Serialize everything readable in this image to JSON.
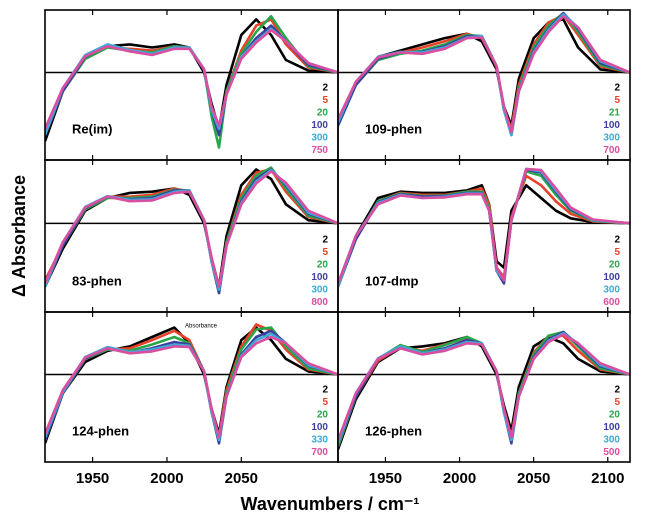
{
  "y_label": "Δ Absorbance",
  "x_label": "Wavenumbers / cm⁻¹",
  "chart_data": [
    {
      "type": "line",
      "title": "Re(im)",
      "xlim": [
        1918,
        2115
      ],
      "ylim": [
        -1.4,
        1
      ],
      "xticks": [
        1950,
        2000,
        2050
      ],
      "x": [
        1918,
        1930,
        1945,
        1960,
        1975,
        1990,
        2005,
        2015,
        2025,
        2030,
        2035,
        2040,
        2050,
        2060,
        2070,
        2080,
        2095,
        2115
      ],
      "series": [
        {
          "name": "2",
          "color": "#000000",
          "values": [
            -1.1,
            -0.3,
            0.25,
            0.42,
            0.45,
            0.4,
            0.45,
            0.4,
            0.0,
            -0.5,
            -0.9,
            -0.2,
            0.6,
            0.85,
            0.6,
            0.2,
            0.03,
            0
          ]
        },
        {
          "name": "5",
          "color": "#e8412a",
          "values": [
            -1.0,
            -0.3,
            0.22,
            0.4,
            0.38,
            0.35,
            0.42,
            0.4,
            0.05,
            -0.6,
            -1.0,
            -0.3,
            0.35,
            0.75,
            0.85,
            0.45,
            0.08,
            0
          ]
        },
        {
          "name": "20",
          "color": "#2aa64a",
          "values": [
            -1.0,
            -0.3,
            0.22,
            0.4,
            0.35,
            0.32,
            0.42,
            0.4,
            0.05,
            -0.7,
            -1.2,
            -0.3,
            0.3,
            0.65,
            0.9,
            0.55,
            0.1,
            0
          ]
        },
        {
          "name": "100",
          "color": "#3b3fa0",
          "values": [
            -1.0,
            -0.3,
            0.25,
            0.43,
            0.34,
            0.3,
            0.4,
            0.4,
            0.05,
            -0.6,
            -1.0,
            -0.35,
            0.25,
            0.55,
            0.75,
            0.5,
            0.12,
            0
          ]
        },
        {
          "name": "300",
          "color": "#3fa9d8",
          "values": [
            -1.0,
            -0.25,
            0.28,
            0.45,
            0.36,
            0.3,
            0.4,
            0.4,
            0.05,
            -0.6,
            -0.9,
            -0.35,
            0.25,
            0.5,
            0.7,
            0.5,
            0.15,
            0
          ]
        },
        {
          "name": "750",
          "color": "#d94ea0",
          "values": [
            -0.9,
            -0.25,
            0.26,
            0.42,
            0.34,
            0.28,
            0.38,
            0.38,
            0.05,
            -0.55,
            -0.85,
            -0.35,
            0.22,
            0.48,
            0.68,
            0.5,
            0.15,
            0
          ]
        }
      ]
    },
    {
      "type": "line",
      "title": "109-phen",
      "xlim": [
        1918,
        2115
      ],
      "ylim": [
        -1.4,
        1
      ],
      "xticks": [
        1950,
        2000,
        2050,
        2100
      ],
      "x": [
        1918,
        1930,
        1945,
        1960,
        1975,
        1990,
        2005,
        2015,
        2025,
        2030,
        2035,
        2040,
        2050,
        2060,
        2070,
        2080,
        2095,
        2115
      ],
      "series": [
        {
          "name": "2",
          "color": "#000000",
          "values": [
            -0.75,
            -0.2,
            0.25,
            0.35,
            0.45,
            0.55,
            0.62,
            0.5,
            0.05,
            -0.55,
            -0.85,
            -0.1,
            0.55,
            0.8,
            0.85,
            0.4,
            0.05,
            0
          ]
        },
        {
          "name": "5",
          "color": "#e8412a",
          "values": [
            -0.8,
            -0.2,
            0.22,
            0.32,
            0.4,
            0.5,
            0.62,
            0.55,
            0.1,
            -0.6,
            -0.9,
            -0.2,
            0.45,
            0.8,
            0.92,
            0.6,
            0.1,
            0
          ]
        },
        {
          "name": "21",
          "color": "#2aa64a",
          "values": [
            -0.85,
            -0.2,
            0.2,
            0.3,
            0.35,
            0.45,
            0.6,
            0.58,
            0.1,
            -0.6,
            -0.95,
            -0.25,
            0.4,
            0.75,
            0.95,
            0.65,
            0.12,
            0
          ]
        },
        {
          "name": "100",
          "color": "#3b3fa0",
          "values": [
            -0.85,
            -0.2,
            0.22,
            0.32,
            0.33,
            0.42,
            0.58,
            0.58,
            0.1,
            -0.6,
            -1.0,
            -0.3,
            0.35,
            0.7,
            0.95,
            0.7,
            0.15,
            0
          ]
        },
        {
          "name": "300",
          "color": "#3fa9d8",
          "values": [
            -0.8,
            -0.15,
            0.25,
            0.33,
            0.32,
            0.4,
            0.56,
            0.58,
            0.1,
            -0.6,
            -1.0,
            -0.3,
            0.32,
            0.68,
            0.93,
            0.72,
            0.18,
            0
          ]
        },
        {
          "name": "700",
          "color": "#d94ea0",
          "values": [
            -0.75,
            -0.15,
            0.24,
            0.32,
            0.3,
            0.38,
            0.55,
            0.56,
            0.1,
            -0.55,
            -0.95,
            -0.3,
            0.3,
            0.65,
            0.9,
            0.72,
            0.2,
            0
          ]
        }
      ]
    },
    {
      "type": "line",
      "title": "83-phen",
      "xlim": [
        1918,
        2115
      ],
      "ylim": [
        -1.4,
        1
      ],
      "xticks": [
        1950,
        2000,
        2050
      ],
      "x": [
        1918,
        1930,
        1945,
        1960,
        1975,
        1990,
        2005,
        2015,
        2025,
        2030,
        2035,
        2040,
        2050,
        2060,
        2070,
        2080,
        2095,
        2115
      ],
      "series": [
        {
          "name": "2",
          "color": "#000000",
          "values": [
            -1.0,
            -0.4,
            0.2,
            0.4,
            0.48,
            0.5,
            0.55,
            0.45,
            0.0,
            -0.55,
            -1.0,
            -0.2,
            0.6,
            0.85,
            0.7,
            0.3,
            0.05,
            0
          ]
        },
        {
          "name": "5",
          "color": "#e8412a",
          "values": [
            -0.9,
            -0.35,
            0.25,
            0.42,
            0.42,
            0.45,
            0.55,
            0.5,
            0.05,
            -0.6,
            -1.05,
            -0.3,
            0.45,
            0.8,
            0.85,
            0.5,
            0.1,
            0
          ]
        },
        {
          "name": "20",
          "color": "#2aa64a",
          "values": [
            -1.0,
            -0.35,
            0.22,
            0.4,
            0.4,
            0.42,
            0.53,
            0.52,
            0.05,
            -0.6,
            -1.1,
            -0.3,
            0.4,
            0.75,
            0.88,
            0.55,
            0.12,
            0
          ]
        },
        {
          "name": "100",
          "color": "#3b3fa0",
          "values": [
            -1.0,
            -0.35,
            0.24,
            0.42,
            0.38,
            0.4,
            0.52,
            0.52,
            0.05,
            -0.6,
            -1.1,
            -0.35,
            0.35,
            0.7,
            0.85,
            0.6,
            0.15,
            0
          ]
        },
        {
          "name": "300",
          "color": "#3fa9d8",
          "values": [
            -1.0,
            -0.3,
            0.26,
            0.43,
            0.37,
            0.38,
            0.5,
            0.52,
            0.05,
            -0.6,
            -1.05,
            -0.35,
            0.32,
            0.66,
            0.84,
            0.62,
            0.17,
            0
          ]
        },
        {
          "name": "800",
          "color": "#d94ea0",
          "values": [
            -0.95,
            -0.3,
            0.25,
            0.42,
            0.35,
            0.36,
            0.48,
            0.5,
            0.05,
            -0.55,
            -1.0,
            -0.35,
            0.3,
            0.63,
            0.82,
            0.64,
            0.2,
            0
          ]
        }
      ]
    },
    {
      "type": "line",
      "title": "107-dmp",
      "xlim": [
        1918,
        2115
      ],
      "ylim": [
        -1.4,
        1
      ],
      "xticks": [
        1950,
        2000,
        2050,
        2100
      ],
      "x": [
        1918,
        1930,
        1945,
        1960,
        1975,
        1990,
        2005,
        2015,
        2020,
        2025,
        2030,
        2035,
        2045,
        2055,
        2065,
        2075,
        2090,
        2115
      ],
      "series": [
        {
          "name": "2",
          "color": "#000000",
          "values": [
            -1.0,
            -0.2,
            0.4,
            0.5,
            0.48,
            0.48,
            0.52,
            0.6,
            0.3,
            -0.6,
            -0.7,
            0.2,
            0.6,
            0.4,
            0.2,
            0.08,
            0.02,
            0
          ]
        },
        {
          "name": "5",
          "color": "#e8412a",
          "values": [
            -1.0,
            -0.25,
            0.35,
            0.48,
            0.45,
            0.45,
            0.5,
            0.55,
            0.3,
            -0.7,
            -0.85,
            0.1,
            0.75,
            0.6,
            0.35,
            0.15,
            0.03,
            0
          ]
        },
        {
          "name": "20",
          "color": "#2aa64a",
          "values": [
            -1.0,
            -0.25,
            0.35,
            0.47,
            0.43,
            0.44,
            0.5,
            0.5,
            0.25,
            -0.75,
            -0.9,
            0.05,
            0.82,
            0.75,
            0.45,
            0.2,
            0.04,
            0
          ]
        },
        {
          "name": "100",
          "color": "#3b3fa0",
          "values": [
            -1.0,
            -0.25,
            0.33,
            0.46,
            0.42,
            0.43,
            0.48,
            0.48,
            0.2,
            -0.75,
            -0.95,
            0.05,
            0.85,
            0.8,
            0.5,
            0.22,
            0.05,
            0
          ]
        },
        {
          "name": "300",
          "color": "#3fa9d8",
          "values": [
            -1.0,
            -0.2,
            0.32,
            0.45,
            0.4,
            0.42,
            0.47,
            0.47,
            0.2,
            -0.75,
            -0.9,
            0.05,
            0.86,
            0.82,
            0.52,
            0.24,
            0.05,
            0
          ]
        },
        {
          "name": "600",
          "color": "#d94ea0",
          "values": [
            -0.95,
            -0.2,
            0.3,
            0.44,
            0.4,
            0.41,
            0.46,
            0.46,
            0.2,
            -0.7,
            -0.9,
            0.05,
            0.86,
            0.84,
            0.55,
            0.25,
            0.06,
            0
          ]
        }
      ]
    },
    {
      "type": "line",
      "title": "124-phen",
      "annotation": "Absorbance",
      "xlim": [
        1918,
        2115
      ],
      "ylim": [
        -1.4,
        1
      ],
      "xticks": [
        1950,
        2000,
        2050
      ],
      "x": [
        1918,
        1930,
        1945,
        1960,
        1975,
        1990,
        2005,
        2015,
        2025,
        2030,
        2035,
        2040,
        2050,
        2060,
        2070,
        2080,
        2095,
        2115
      ],
      "series": [
        {
          "name": "2",
          "color": "#000000",
          "values": [
            -1.1,
            -0.3,
            0.2,
            0.38,
            0.45,
            0.6,
            0.75,
            0.5,
            0.0,
            -0.55,
            -0.95,
            -0.2,
            0.55,
            0.75,
            0.55,
            0.25,
            0.05,
            0
          ]
        },
        {
          "name": "5",
          "color": "#e8412a",
          "values": [
            -1.05,
            -0.3,
            0.25,
            0.4,
            0.42,
            0.55,
            0.7,
            0.55,
            0.05,
            -0.6,
            -1.0,
            -0.25,
            0.45,
            0.8,
            0.7,
            0.4,
            0.08,
            0
          ]
        },
        {
          "name": "20",
          "color": "#2aa64a",
          "values": [
            -1.05,
            -0.3,
            0.25,
            0.4,
            0.38,
            0.48,
            0.6,
            0.5,
            0.05,
            -0.6,
            -1.05,
            -0.3,
            0.4,
            0.72,
            0.75,
            0.45,
            0.1,
            0
          ]
        },
        {
          "name": "100",
          "color": "#3b3fa0",
          "values": [
            -1.05,
            -0.3,
            0.26,
            0.42,
            0.35,
            0.42,
            0.52,
            0.48,
            0.05,
            -0.6,
            -1.1,
            -0.35,
            0.32,
            0.6,
            0.7,
            0.5,
            0.14,
            0
          ]
        },
        {
          "name": "330",
          "color": "#3fa9d8",
          "values": [
            -1.0,
            -0.28,
            0.28,
            0.44,
            0.36,
            0.4,
            0.48,
            0.46,
            0.05,
            -0.6,
            -1.05,
            -0.35,
            0.3,
            0.55,
            0.65,
            0.5,
            0.15,
            0
          ]
        },
        {
          "name": "700",
          "color": "#d94ea0",
          "values": [
            -0.95,
            -0.25,
            0.27,
            0.42,
            0.34,
            0.37,
            0.45,
            0.44,
            0.05,
            -0.55,
            -1.0,
            -0.35,
            0.28,
            0.5,
            0.6,
            0.5,
            0.18,
            0
          ]
        }
      ]
    },
    {
      "type": "line",
      "title": "126-phen",
      "xlim": [
        1918,
        2115
      ],
      "ylim": [
        -1.4,
        1
      ],
      "xticks": [
        1950,
        2000,
        2050,
        2100
      ],
      "x": [
        1918,
        1930,
        1945,
        1960,
        1975,
        1990,
        2005,
        2015,
        2025,
        2030,
        2035,
        2040,
        2050,
        2060,
        2070,
        2080,
        2095,
        2115
      ],
      "series": [
        {
          "name": "2",
          "color": "#000000",
          "values": [
            -1.2,
            -0.4,
            0.2,
            0.42,
            0.45,
            0.5,
            0.6,
            0.45,
            0.0,
            -0.5,
            -0.9,
            -0.2,
            0.45,
            0.6,
            0.5,
            0.25,
            0.05,
            0
          ]
        },
        {
          "name": "5",
          "color": "#e8412a",
          "values": [
            -1.15,
            -0.35,
            0.22,
            0.44,
            0.38,
            0.48,
            0.58,
            0.5,
            0.05,
            -0.6,
            -1.0,
            -0.3,
            0.35,
            0.62,
            0.62,
            0.38,
            0.08,
            0
          ]
        },
        {
          "name": "20",
          "color": "#2aa64a",
          "values": [
            -1.15,
            -0.35,
            0.25,
            0.47,
            0.36,
            0.47,
            0.6,
            0.5,
            0.05,
            -0.6,
            -1.05,
            -0.3,
            0.32,
            0.62,
            0.68,
            0.45,
            0.1,
            0
          ]
        },
        {
          "name": "100",
          "color": "#3b3fa0",
          "values": [
            -1.1,
            -0.35,
            0.25,
            0.44,
            0.34,
            0.42,
            0.55,
            0.5,
            0.05,
            -0.6,
            -1.1,
            -0.35,
            0.28,
            0.56,
            0.68,
            0.48,
            0.13,
            0
          ]
        },
        {
          "name": "300",
          "color": "#3fa9d8",
          "values": [
            -1.1,
            -0.3,
            0.26,
            0.45,
            0.34,
            0.4,
            0.52,
            0.5,
            0.05,
            -0.6,
            -1.05,
            -0.35,
            0.26,
            0.54,
            0.66,
            0.5,
            0.15,
            0
          ]
        },
        {
          "name": "500",
          "color": "#d94ea0",
          "values": [
            -1.05,
            -0.3,
            0.25,
            0.42,
            0.32,
            0.38,
            0.5,
            0.48,
            0.05,
            -0.55,
            -1.0,
            -0.35,
            0.25,
            0.52,
            0.64,
            0.5,
            0.18,
            0
          ]
        }
      ]
    }
  ]
}
